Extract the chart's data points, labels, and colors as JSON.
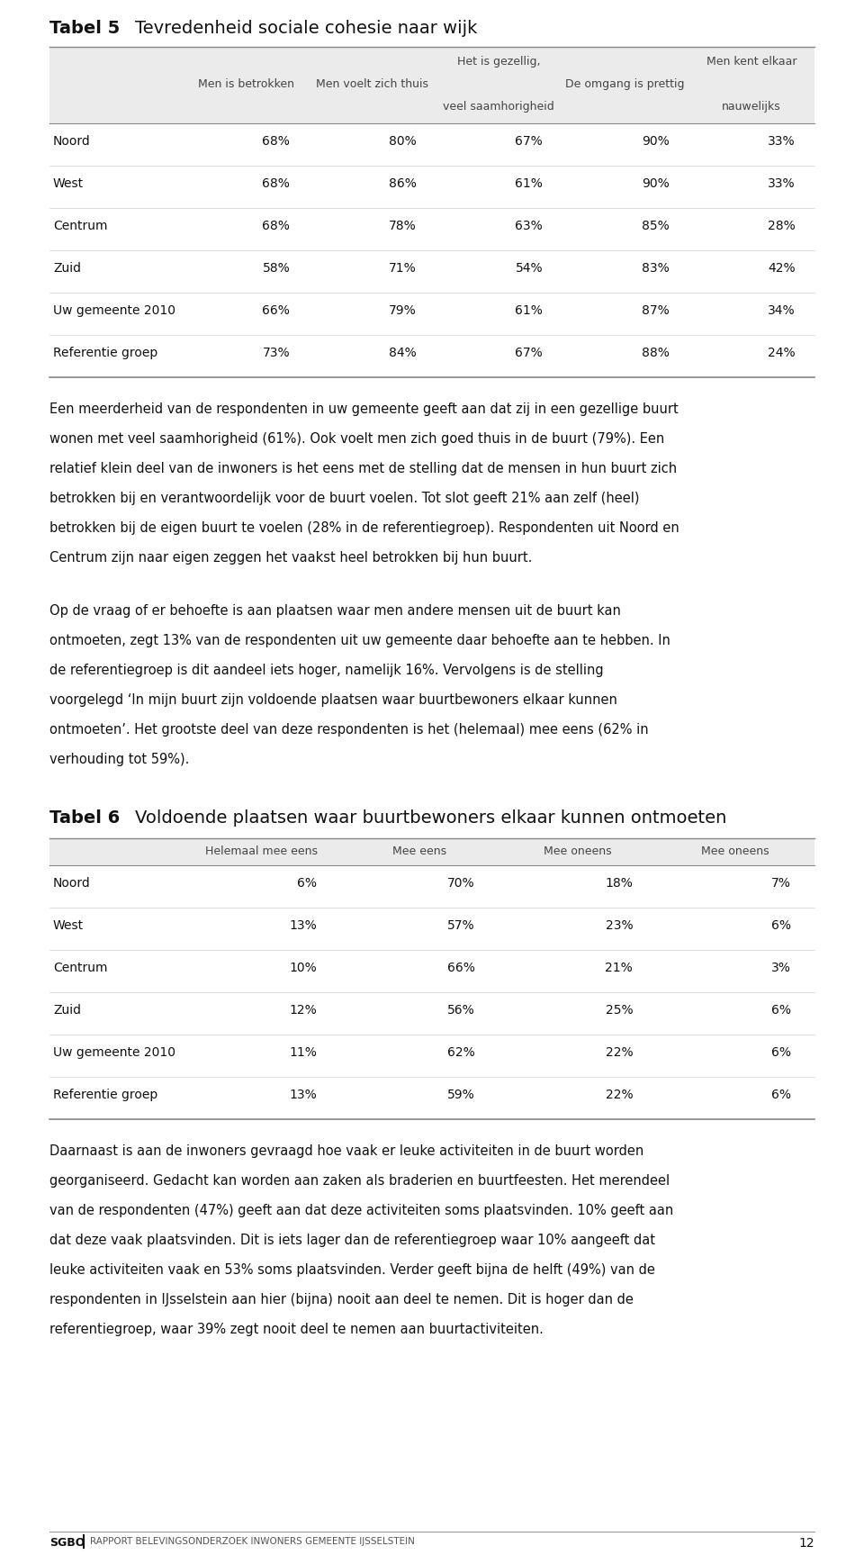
{
  "page_bg": "#ffffff",
  "text_color": "#111111",
  "table5_title": "Tabel 5",
  "table5_subtitle": "Tevredenheid sociale cohesie naar wijk",
  "table5_col_headers_line1": [
    "",
    "",
    "Het is gezellig,",
    "",
    "Men kent elkaar"
  ],
  "table5_col_headers_line2": [
    "Men is betrokken",
    "Men voelt zich thuis",
    "",
    "De omgang is prettig",
    ""
  ],
  "table5_col_headers_line3": [
    "",
    "",
    "veel saamhorigheid",
    "",
    "nauwelijks"
  ],
  "table5_rows": [
    [
      "Noord",
      "68%",
      "80%",
      "67%",
      "90%",
      "33%"
    ],
    [
      "West",
      "68%",
      "86%",
      "61%",
      "90%",
      "33%"
    ],
    [
      "Centrum",
      "68%",
      "78%",
      "63%",
      "85%",
      "28%"
    ],
    [
      "Zuid",
      "58%",
      "71%",
      "54%",
      "83%",
      "42%"
    ],
    [
      "Uw gemeente 2010",
      "66%",
      "79%",
      "61%",
      "87%",
      "34%"
    ],
    [
      "Referentie groep",
      "73%",
      "84%",
      "67%",
      "88%",
      "24%"
    ]
  ],
  "para1_lines": [
    "Een meerderheid van de respondenten in uw gemeente geeft aan dat zij in een gezellige buurt",
    "wonen met veel saamhorigheid (61%). Ook voelt men zich goed thuis in de buurt (79%). Een",
    "relatief klein deel van de inwoners is het eens met de stelling dat de mensen in hun buurt zich",
    "betrokken bij en verantwoordelijk voor de buurt voelen. Tot slot geeft 21% aan zelf (heel)",
    "betrokken bij de eigen buurt te voelen (28% in de referentiegroep). Respondenten uit Noord en",
    "Centrum zijn naar eigen zeggen het vaakst heel betrokken bij hun buurt."
  ],
  "para2_lines": [
    "Op de vraag of er behoefte is aan plaatsen waar men andere mensen uit de buurt kan",
    "ontmoeten, zegt 13% van de respondenten uit uw gemeente daar behoefte aan te hebben. In",
    "de referentiegroep is dit aandeel iets hoger, namelijk 16%. Vervolgens is de stelling",
    "voorgelegd ‘In mijn buurt zijn voldoende plaatsen waar buurtbewoners elkaar kunnen",
    "ontmoeten’. Het grootste deel van deze respondenten is het (helemaal) mee eens (62% in",
    "verhouding tot 59%)."
  ],
  "table6_title": "Tabel 6",
  "table6_subtitle": "Voldoende plaatsen waar buurtbewoners elkaar kunnen ontmoeten",
  "table6_col_headers": [
    "Helemaal mee eens",
    "Mee eens",
    "Mee oneens",
    "Mee oneens"
  ],
  "table6_rows": [
    [
      "Noord",
      "6%",
      "70%",
      "18%",
      "7%"
    ],
    [
      "West",
      "13%",
      "57%",
      "23%",
      "6%"
    ],
    [
      "Centrum",
      "10%",
      "66%",
      "21%",
      "3%"
    ],
    [
      "Zuid",
      "12%",
      "56%",
      "25%",
      "6%"
    ],
    [
      "Uw gemeente 2010",
      "11%",
      "62%",
      "22%",
      "6%"
    ],
    [
      "Referentie groep",
      "13%",
      "59%",
      "22%",
      "6%"
    ]
  ],
  "para3_lines": [
    "Daarnaast is aan de inwoners gevraagd hoe vaak er leuke activiteiten in de buurt worden",
    "georganiseerd. Gedacht kan worden aan zaken als braderien en buurtfeesten. Het merendeel",
    "van de respondenten (47%) geeft aan dat deze activiteiten soms plaatsvinden. 10% geeft aan",
    "dat deze vaak plaatsvinden. Dit is iets lager dan de referentiegroep waar 10% aangeeft dat",
    "leuke activiteiten vaak en 53% soms plaatsvinden. Verder geeft bijna de helft (49%) van de",
    "respondenten in IJsselstein aan hier (bijna) nooit aan deel te nemen. Dit is hoger dan de",
    "referentiegroep, waar 39% zegt nooit deel te nemen aan buurtactiviteiten."
  ],
  "footer_left": "SGBO",
  "footer_middle": "RAPPORT BELEVINGSONDERZOEK INWONERS GEMEENTE IJSSELSTEIN",
  "footer_page": "12",
  "header_color": "#ebebeb",
  "table_border_color": "#888888",
  "table_row_line_color": "#d0d0d0"
}
